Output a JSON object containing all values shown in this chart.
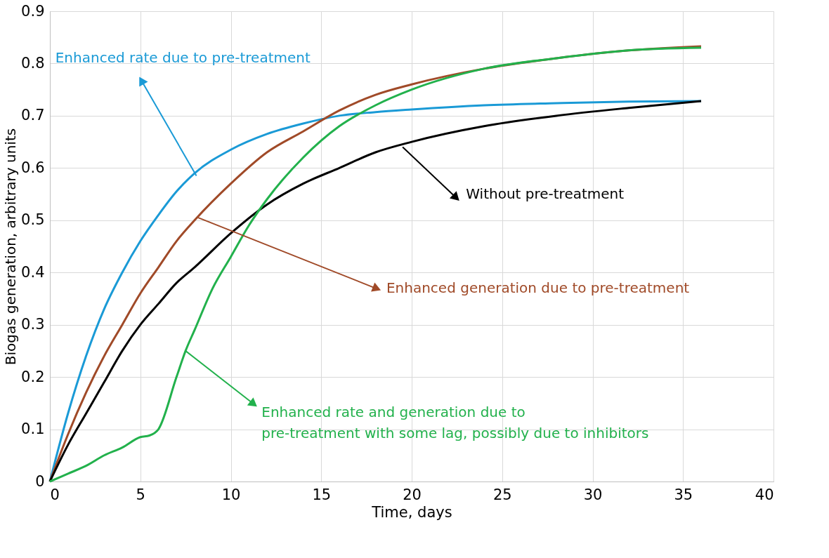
{
  "chart_data": {
    "type": "line",
    "xlabel": "Time, days",
    "ylabel": "Biogas generation, arbitrary units",
    "xlim": [
      0,
      40
    ],
    "xticks": [
      0,
      5,
      10,
      15,
      20,
      25,
      30,
      35,
      40
    ],
    "ylim": [
      0,
      0.9
    ],
    "yticks": [
      0,
      0.1,
      0.2,
      0.3,
      0.4,
      0.5,
      0.6,
      0.7,
      0.8,
      0.9
    ],
    "grid": true,
    "marker": "none",
    "line_style": "solid",
    "series": [
      {
        "color": "#1a9ad6",
        "x": [
          0,
          1,
          2,
          3,
          4,
          5,
          6,
          7,
          8,
          10,
          12,
          14,
          16,
          18,
          20,
          24,
          28,
          32,
          36
        ],
        "values": [
          0,
          0.13,
          0.24,
          0.33,
          0.4,
          0.46,
          0.51,
          0.555,
          0.59,
          0.635,
          0.665,
          0.685,
          0.7,
          0.707,
          0.712,
          0.72,
          0.724,
          0.727,
          0.728
        ]
      },
      {
        "color": "#a04a28",
        "x": [
          0,
          1,
          2,
          3,
          4,
          5,
          6,
          7,
          8,
          10,
          12,
          14,
          16,
          18,
          20,
          24,
          28,
          32,
          36
        ],
        "values": [
          0,
          0.09,
          0.17,
          0.24,
          0.3,
          0.36,
          0.41,
          0.46,
          0.5,
          0.57,
          0.63,
          0.67,
          0.71,
          0.74,
          0.76,
          0.79,
          0.81,
          0.825,
          0.833
        ]
      },
      {
        "color": "#000000",
        "x": [
          0,
          1,
          2,
          3,
          4,
          5,
          6,
          7,
          8,
          10,
          12,
          14,
          16,
          18,
          20,
          24,
          28,
          32,
          36
        ],
        "values": [
          0,
          0.07,
          0.13,
          0.19,
          0.25,
          0.3,
          0.34,
          0.38,
          0.41,
          0.475,
          0.53,
          0.57,
          0.6,
          0.63,
          0.65,
          0.68,
          0.7,
          0.715,
          0.728
        ]
      },
      {
        "color": "#22b14c",
        "x": [
          0,
          1,
          2,
          3,
          4,
          5,
          5.5,
          6,
          7,
          7.5,
          8,
          9,
          10,
          11,
          12,
          14,
          16,
          18,
          20,
          24,
          28,
          32,
          36
        ],
        "values": [
          0,
          0.015,
          0.03,
          0.05,
          0.065,
          0.085,
          0.088,
          0.1,
          0.2,
          0.25,
          0.29,
          0.37,
          0.43,
          0.49,
          0.54,
          0.62,
          0.68,
          0.72,
          0.75,
          0.79,
          0.81,
          0.825,
          0.83
        ]
      }
    ],
    "annotations": [
      {
        "text": "Enhanced rate due to pre-treatment",
        "x": 8.1,
        "y": 0.585
      },
      {
        "text": "Enhanced generation due to pre-treatment",
        "x": 8.2,
        "y": 0.505
      },
      {
        "text": "Without pre-treatment",
        "x": 19.5,
        "y": 0.64
      },
      {
        "text": "Enhanced rate and generation due to\npre-treatment with some lag, possibly due to inhibitors",
        "x": 7.5,
        "y": 0.25
      }
    ]
  }
}
